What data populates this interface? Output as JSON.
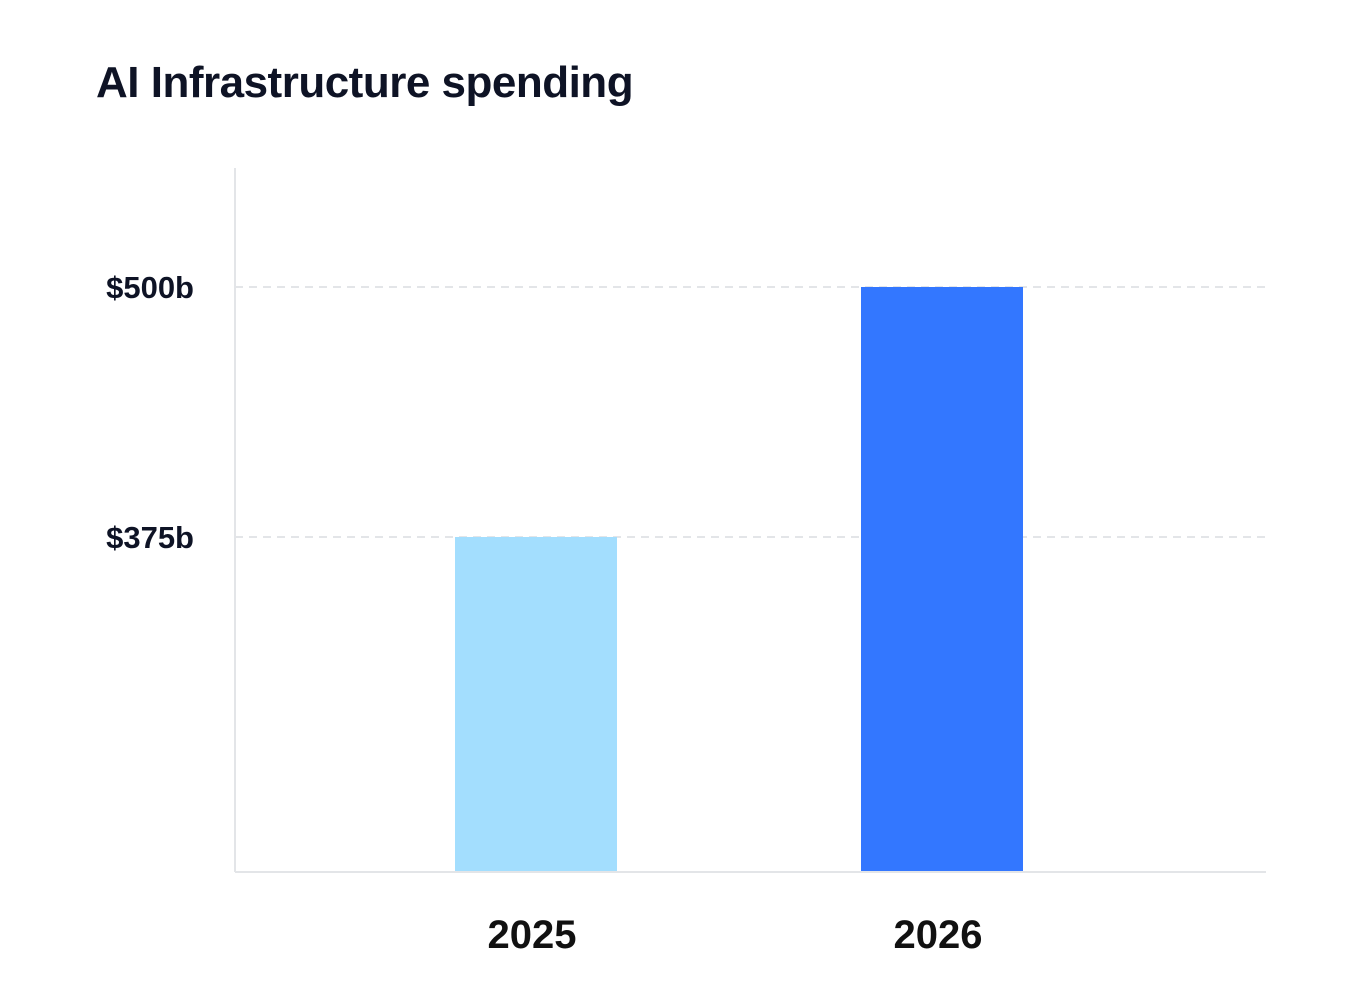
{
  "chart_data": {
    "type": "bar",
    "title": "AI Infrastructure spending",
    "categories": [
      "2025",
      "2026"
    ],
    "values": [
      375,
      500
    ],
    "value_unit": "billion USD",
    "bar_colors": [
      "#A3DEFE",
      "#3377FF"
    ],
    "y_ticks": [
      {
        "value": 375,
        "label": "$375b"
      },
      {
        "value": 500,
        "label": "$500b"
      }
    ],
    "ylim": [
      207.5,
      559.5
    ],
    "xlabel": "",
    "ylabel": "",
    "grid": "dashed horizontal at ticks",
    "legend": "none"
  }
}
